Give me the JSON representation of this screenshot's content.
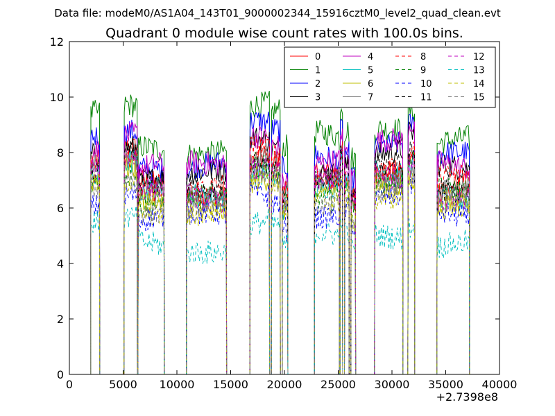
{
  "suptitle": "Data file: modeM0/AS1A04_143T01_9000002344_15916cztM0_level2_quad_clean.evt",
  "chart_data": {
    "type": "line",
    "title": "Quadrant 0 module wise count rates with 100.0s bins.",
    "xlabel": "",
    "ylabel": "",
    "xlim": [
      0,
      40000
    ],
    "ylim": [
      0,
      12
    ],
    "x_offset_label": "+2.7398e8",
    "x_ticks": [
      0,
      5000,
      10000,
      15000,
      20000,
      25000,
      30000,
      35000,
      40000
    ],
    "x_tick_labels": [
      "0",
      "5000",
      "10000",
      "15000",
      "20000",
      "25000",
      "30000",
      "35000",
      "40000"
    ],
    "y_ticks": [
      0,
      2,
      4,
      6,
      8,
      10,
      12
    ],
    "y_tick_labels": [
      "0",
      "2",
      "4",
      "6",
      "8",
      "10",
      "12"
    ],
    "grid": false,
    "legend_position": "top-right",
    "legend_columns": 4,
    "bin_width_s": 100,
    "segments": [
      {
        "start": 2000,
        "end": 2800
      },
      {
        "start": 5100,
        "end": 6300
      },
      {
        "start": 6400,
        "end": 8800
      },
      {
        "start": 10900,
        "end": 14600
      },
      {
        "start": 16800,
        "end": 18600
      },
      {
        "start": 18800,
        "end": 19600
      },
      {
        "start": 19800,
        "end": 20300
      },
      {
        "start": 22800,
        "end": 25100
      },
      {
        "start": 25200,
        "end": 25400
      },
      {
        "start": 25600,
        "end": 26000
      },
      {
        "start": 26200,
        "end": 26600
      },
      {
        "start": 28400,
        "end": 31000
      },
      {
        "start": 31500,
        "end": 32100
      },
      {
        "start": 34200,
        "end": 37200
      }
    ],
    "series": [
      {
        "name": "0",
        "level": 7.8,
        "color": "#ff0000",
        "dash": "solid"
      },
      {
        "name": "1",
        "level": 9.5,
        "color": "#008000",
        "dash": "solid"
      },
      {
        "name": "2",
        "level": 8.8,
        "color": "#0000ff",
        "dash": "solid"
      },
      {
        "name": "3",
        "level": 8.3,
        "color": "#000000",
        "dash": "solid"
      },
      {
        "name": "4",
        "level": 8.6,
        "color": "#bf00bf",
        "dash": "solid"
      },
      {
        "name": "5",
        "level": 7.4,
        "color": "#00bfbf",
        "dash": "solid"
      },
      {
        "name": "6",
        "level": 7.1,
        "color": "#bfbf00",
        "dash": "solid"
      },
      {
        "name": "7",
        "level": 7.6,
        "color": "#808080",
        "dash": "solid"
      },
      {
        "name": "8",
        "level": 7.9,
        "color": "#ff0000",
        "dash": "dashed"
      },
      {
        "name": "9",
        "level": 7.3,
        "color": "#008000",
        "dash": "dashed"
      },
      {
        "name": "10",
        "level": 6.5,
        "color": "#0000ff",
        "dash": "dashed"
      },
      {
        "name": "11",
        "level": 7.7,
        "color": "#000000",
        "dash": "dashed"
      },
      {
        "name": "12",
        "level": 7.5,
        "color": "#bf00bf",
        "dash": "dashed"
      },
      {
        "name": "13",
        "level": 5.4,
        "color": "#00bfbf",
        "dash": "dashed"
      },
      {
        "name": "14",
        "level": 6.9,
        "color": "#bfbf00",
        "dash": "dashed"
      },
      {
        "name": "15",
        "level": 7.0,
        "color": "#808080",
        "dash": "dashed"
      }
    ]
  }
}
